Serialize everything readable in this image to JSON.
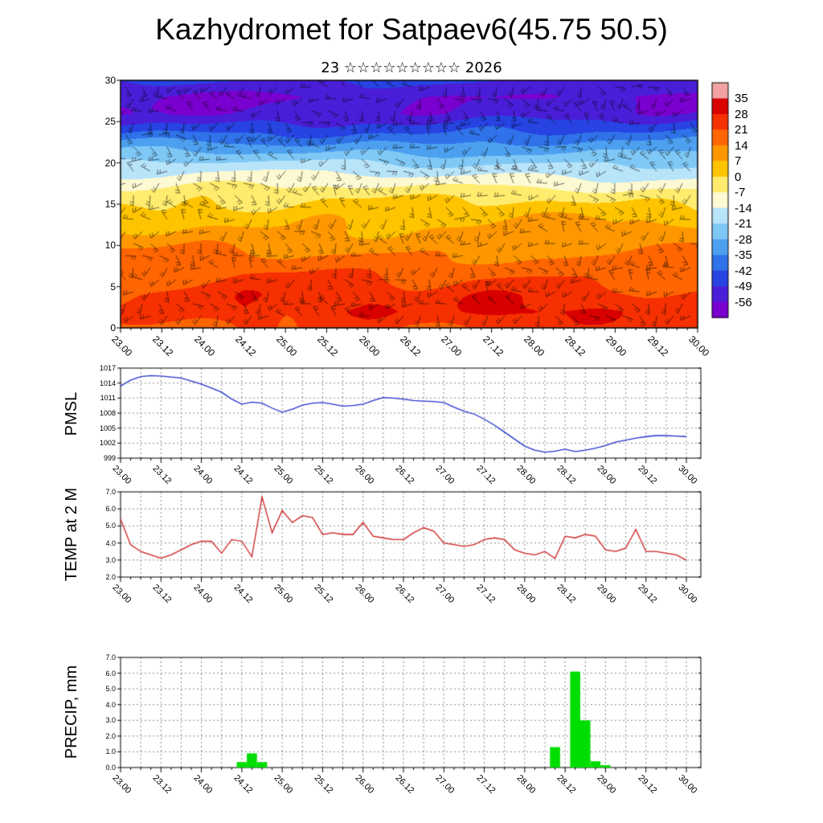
{
  "page": {
    "title": "Kazhydromet for Satpaev6(45.75 50.5)",
    "subtitle": "23 ☆☆☆☆☆☆☆☆☆ 2026"
  },
  "colors": {
    "axis": "#000000",
    "grid": "#888888",
    "pmsl_line": "#2233cc",
    "temp_line": "#cc2020",
    "precip_bar": "#00dd00"
  },
  "time_axis": {
    "tick_labels": [
      "23.00",
      "23.12",
      "24.00",
      "24.12",
      "25.00",
      "25.12",
      "26.00",
      "26.12",
      "27.00",
      "27.12",
      "28.00",
      "28.12",
      "29.00",
      "29.12",
      "30.00"
    ],
    "span_hours": 168,
    "major_step_hours": 12,
    "minor_step_hours": 3
  },
  "chart_data": [
    {
      "type": "heatmap",
      "name": "temperature-wind-cross-section",
      "ylim": [
        0,
        30
      ],
      "yticks": [
        0,
        5,
        10,
        15,
        20,
        25,
        30
      ],
      "levels": [
        0,
        2,
        4,
        6,
        8,
        10,
        12,
        14,
        16,
        18,
        20,
        22,
        24,
        26,
        28,
        30
      ],
      "columns": [
        "23.00",
        "23.12",
        "24.00",
        "24.12",
        "25.00",
        "25.12",
        "26.00",
        "26.12",
        "27.00",
        "27.12",
        "28.00",
        "28.12",
        "29.00",
        "29.12",
        "30.00"
      ],
      "values_by_column": [
        [
          19,
          23,
          22,
          19,
          16,
          12,
          8,
          3,
          -3,
          -12,
          -21,
          -32,
          -44,
          -54,
          -56,
          -49
        ],
        [
          20,
          24,
          22,
          19,
          16,
          12,
          8,
          3,
          -3,
          -12,
          -21,
          -31,
          -43,
          -53,
          -56,
          -49
        ],
        [
          22,
          26,
          24,
          20,
          17,
          13,
          9,
          4,
          -2,
          -11,
          -20,
          -31,
          -43,
          -54,
          -57,
          -50
        ],
        [
          24,
          29,
          26,
          21,
          17,
          13,
          9,
          4,
          -2,
          -11,
          -21,
          -32,
          -44,
          -55,
          -58,
          -51
        ],
        [
          21,
          24,
          23,
          20,
          16,
          12,
          8,
          3,
          -3,
          -12,
          -21,
          -32,
          -44,
          -55,
          -57,
          -50
        ],
        [
          23,
          28,
          25,
          21,
          17,
          13,
          9,
          4,
          -2,
          -11,
          -20,
          -31,
          -43,
          -54,
          -56,
          -49
        ],
        [
          23,
          27,
          25,
          21,
          17,
          13,
          9,
          4,
          -2,
          -11,
          -20,
          -31,
          -43,
          -54,
          -56,
          -49
        ],
        [
          21,
          24,
          22,
          19,
          16,
          12,
          8,
          3,
          -3,
          -12,
          -21,
          -32,
          -44,
          -55,
          -57,
          -50
        ],
        [
          21,
          25,
          23,
          20,
          16,
          12,
          8,
          3,
          -3,
          -12,
          -21,
          -32,
          -44,
          -55,
          -57,
          -50
        ],
        [
          23,
          28,
          26,
          21,
          17,
          13,
          9,
          4,
          -2,
          -11,
          -20,
          -31,
          -43,
          -54,
          -56,
          -49
        ],
        [
          25,
          30,
          27,
          22,
          18,
          14,
          9,
          4,
          -2,
          -11,
          -20,
          -31,
          -43,
          -54,
          -56,
          -49
        ],
        [
          23,
          28,
          25,
          21,
          17,
          13,
          9,
          4,
          -2,
          -11,
          -21,
          -32,
          -44,
          -55,
          -57,
          -50
        ],
        [
          22,
          26,
          24,
          20,
          16,
          12,
          8,
          3,
          -3,
          -12,
          -21,
          -32,
          -44,
          -55,
          -57,
          -50
        ],
        [
          21,
          24,
          23,
          19,
          16,
          12,
          8,
          3,
          -3,
          -12,
          -21,
          -32,
          -44,
          -55,
          -57,
          -50
        ],
        [
          21,
          24,
          22,
          19,
          16,
          12,
          8,
          3,
          -3,
          -12,
          -21,
          -32,
          -44,
          -55,
          -57,
          -50
        ]
      ],
      "colorbar": {
        "boundaries": [
          35,
          28,
          21,
          14,
          7,
          0,
          -7,
          -14,
          -21,
          -28,
          -35,
          -42,
          -49,
          -56
        ],
        "band_colors": [
          "#f2a2a2",
          "#d90000",
          "#f63000",
          "#ff6500",
          "#ff9800",
          "#ffc400",
          "#ffec6e",
          "#fdf9d2",
          "#b8e4fa",
          "#7fc8f6",
          "#4da0ef",
          "#2f72e9",
          "#2743e2",
          "#4a1ed8",
          "#7a00d0"
        ]
      }
    },
    {
      "type": "line",
      "name": "pmsl",
      "ylabel": "PMSL",
      "ylim": [
        999,
        1017
      ],
      "yticks": [
        999,
        1002,
        1005,
        1008,
        1011,
        1014,
        1017
      ],
      "ytick_labels": [
        "999",
        "1002",
        "1005",
        "1008",
        "1011",
        "1014",
        "1017"
      ],
      "x_step_hours": 3,
      "values": [
        1013.4,
        1014.6,
        1015.3,
        1015.5,
        1015.4,
        1015.2,
        1015.0,
        1014.4,
        1013.8,
        1013.0,
        1012.2,
        1010.8,
        1009.8,
        1010.2,
        1010.0,
        1009.0,
        1008.2,
        1008.8,
        1009.6,
        1010.0,
        1010.1,
        1009.8,
        1009.4,
        1009.5,
        1009.8,
        1010.5,
        1011.1,
        1011.0,
        1010.8,
        1010.5,
        1010.4,
        1010.3,
        1010.1,
        1009.2,
        1008.4,
        1007.8,
        1006.8,
        1005.6,
        1004.2,
        1002.8,
        1001.4,
        1000.6,
        1000.2,
        1000.4,
        1000.8,
        1000.3,
        1000.6,
        1001.0,
        1001.5,
        1002.2,
        1002.6,
        1003.0,
        1003.3,
        1003.5,
        1003.5,
        1003.4,
        1003.3
      ]
    },
    {
      "type": "line",
      "name": "temp-2m",
      "ylabel": "TEMP at 2 M",
      "ylim": [
        2,
        7
      ],
      "yticks": [
        2,
        3,
        4,
        5,
        6,
        7
      ],
      "ytick_labels": [
        "2.0",
        "3.0",
        "4.0",
        "5.0",
        "6.0",
        "7.0"
      ],
      "x_step_hours": 3,
      "values": [
        5.4,
        3.9,
        3.5,
        3.3,
        3.1,
        3.3,
        3.6,
        3.9,
        4.1,
        4.1,
        3.4,
        4.2,
        4.1,
        3.2,
        6.7,
        4.6,
        5.9,
        5.2,
        5.6,
        5.5,
        4.5,
        4.6,
        4.5,
        4.5,
        5.2,
        4.4,
        4.3,
        4.2,
        4.2,
        4.6,
        4.9,
        4.7,
        4.0,
        3.9,
        3.8,
        3.9,
        4.2,
        4.3,
        4.2,
        3.6,
        3.4,
        3.3,
        3.5,
        3.1,
        4.4,
        4.3,
        4.5,
        4.4,
        3.6,
        3.5,
        3.7,
        4.8,
        3.5,
        3.5,
        3.4,
        3.3,
        3.0
      ]
    },
    {
      "type": "bar",
      "name": "precip",
      "ylabel": "PRECIP, mm",
      "ylim": [
        0,
        7
      ],
      "yticks": [
        0,
        1,
        2,
        3,
        4,
        5,
        6,
        7
      ],
      "ytick_labels": [
        "0.0",
        "1.0",
        "2.0",
        "3.0",
        "4.0",
        "5.0",
        "6.0",
        "7.0"
      ],
      "x_step_hours": 3,
      "values": [
        0,
        0,
        0,
        0,
        0,
        0,
        0,
        0,
        0,
        0,
        0,
        0,
        0.35,
        0.9,
        0.35,
        0,
        0,
        0,
        0,
        0,
        0,
        0,
        0,
        0,
        0,
        0,
        0,
        0,
        0,
        0,
        0,
        0,
        0,
        0,
        0,
        0,
        0,
        0,
        0,
        0,
        0,
        0,
        0,
        1.3,
        0,
        6.1,
        3.0,
        0.4,
        0.15,
        0,
        0,
        0,
        0,
        0,
        0,
        0,
        0
      ]
    }
  ]
}
